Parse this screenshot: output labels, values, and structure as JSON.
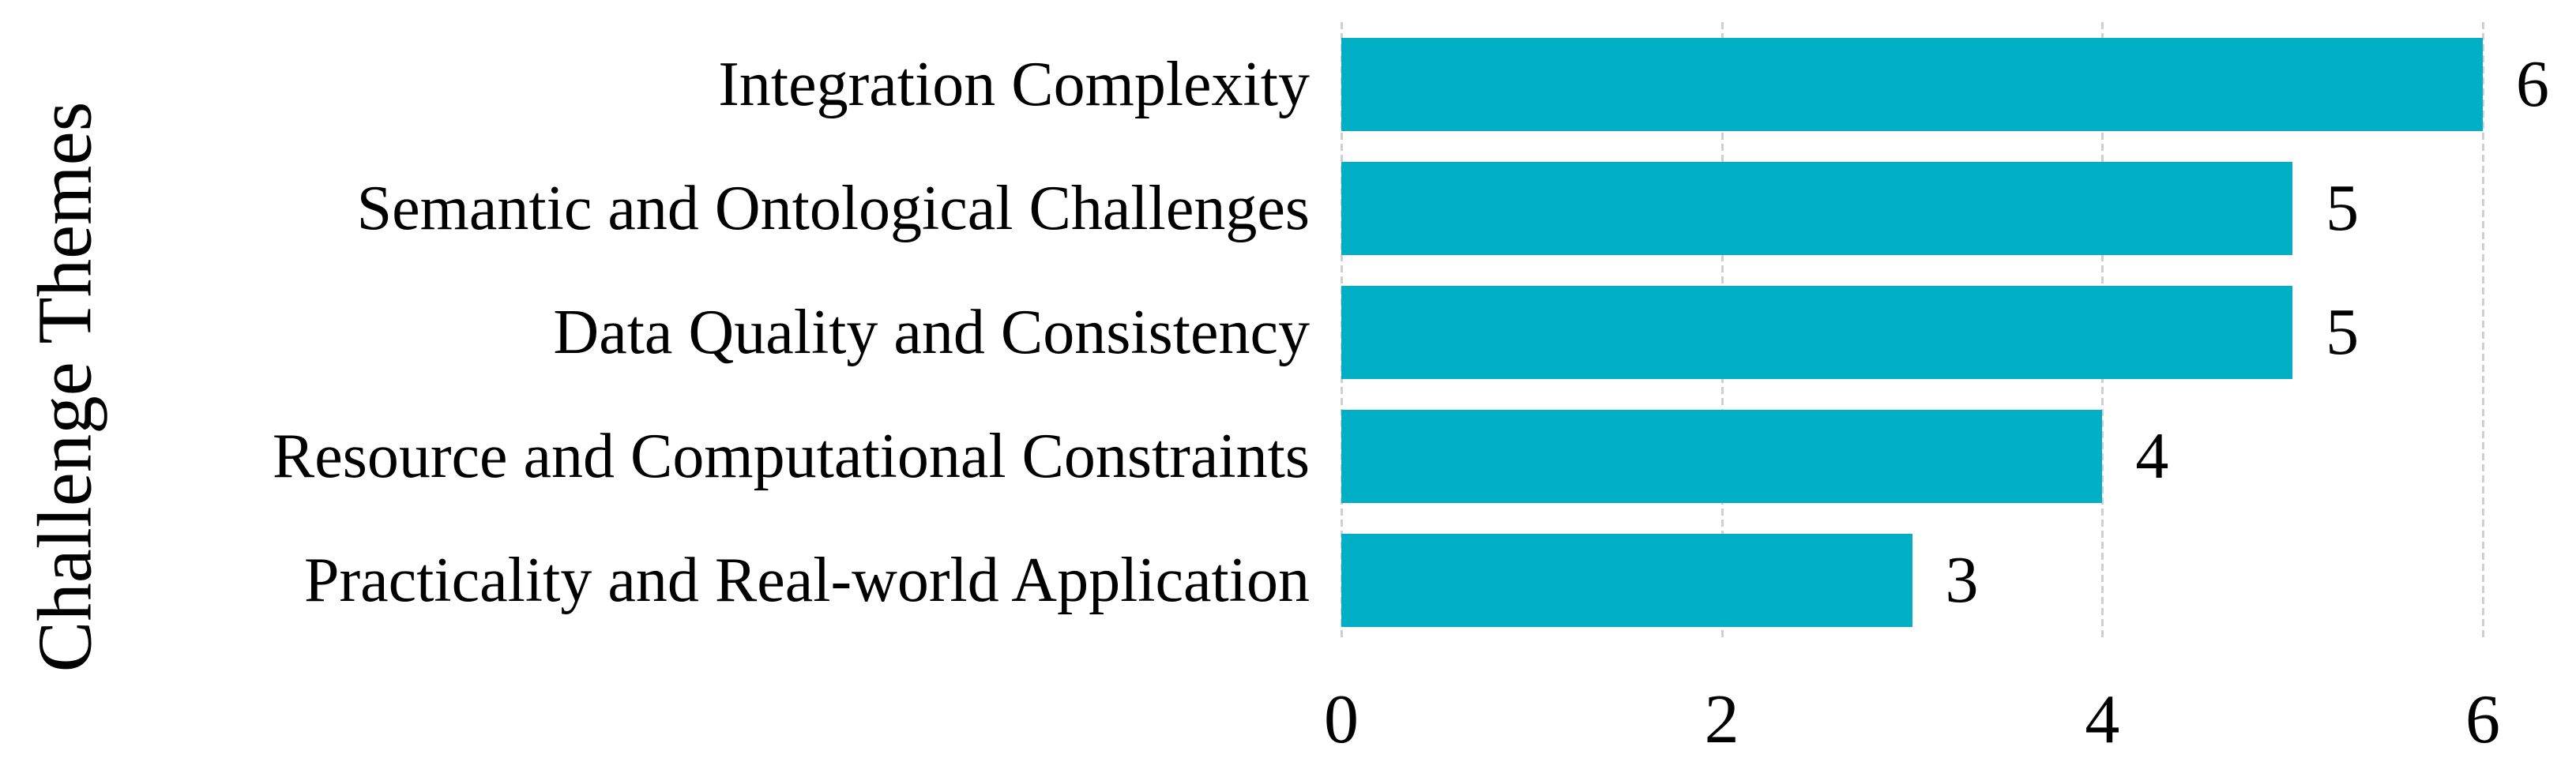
{
  "chart_data": {
    "type": "bar",
    "orientation": "horizontal",
    "title": "",
    "xlabel": "",
    "ylabel": "Challenge Themes",
    "categories": [
      "Integration Complexity",
      "Semantic and Ontological Challenges",
      "Data Quality and Consistency",
      "Resource and Computational Constraints",
      "Practicality and Real-world Application"
    ],
    "values": [
      6,
      5,
      5,
      4,
      3
    ],
    "data_labels": [
      "6",
      "5",
      "5",
      "4",
      "3"
    ],
    "xlim": [
      0,
      6
    ],
    "x_ticks": [
      "0",
      "2",
      "4",
      "6"
    ],
    "legend": false,
    "grid": "vertical-major-dashed",
    "colors": {
      "bar": "#00AEC6",
      "gridline": "#CFCFCF",
      "text": "#000000",
      "background": "#FFFFFF"
    }
  }
}
